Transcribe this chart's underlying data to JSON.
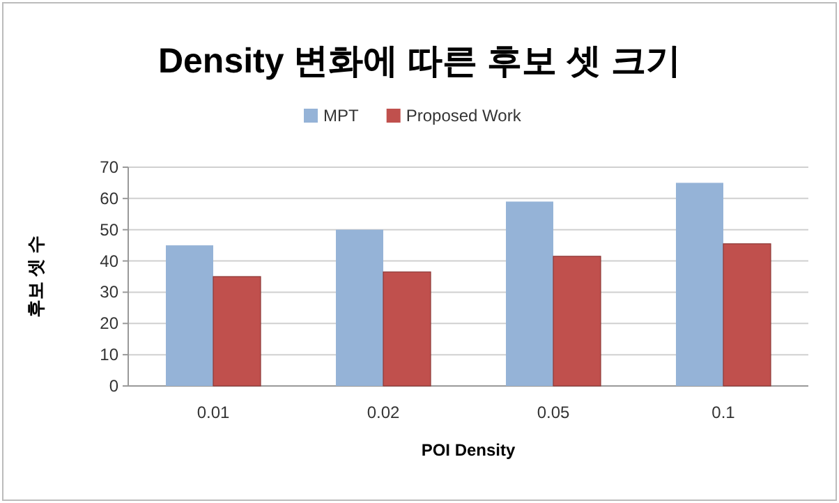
{
  "chart_data": {
    "type": "bar",
    "title": "Density 변화에 따른 후보 셋 크기",
    "xlabel": "POI Density",
    "ylabel": "후보 셋 수",
    "categories": [
      "0.01",
      "0.02",
      "0.05",
      "0.1"
    ],
    "series": [
      {
        "name": "MPT",
        "color": "#95b3d7",
        "values": [
          45,
          50,
          59,
          65
        ]
      },
      {
        "name": "Proposed Work",
        "color": "#c0504d",
        "values": [
          35,
          36.5,
          41.5,
          45.5
        ]
      }
    ],
    "ylim": [
      0,
      70
    ],
    "yticks": [
      0,
      10,
      20,
      30,
      40,
      50,
      60,
      70
    ],
    "grid": "y",
    "legend": "top"
  }
}
